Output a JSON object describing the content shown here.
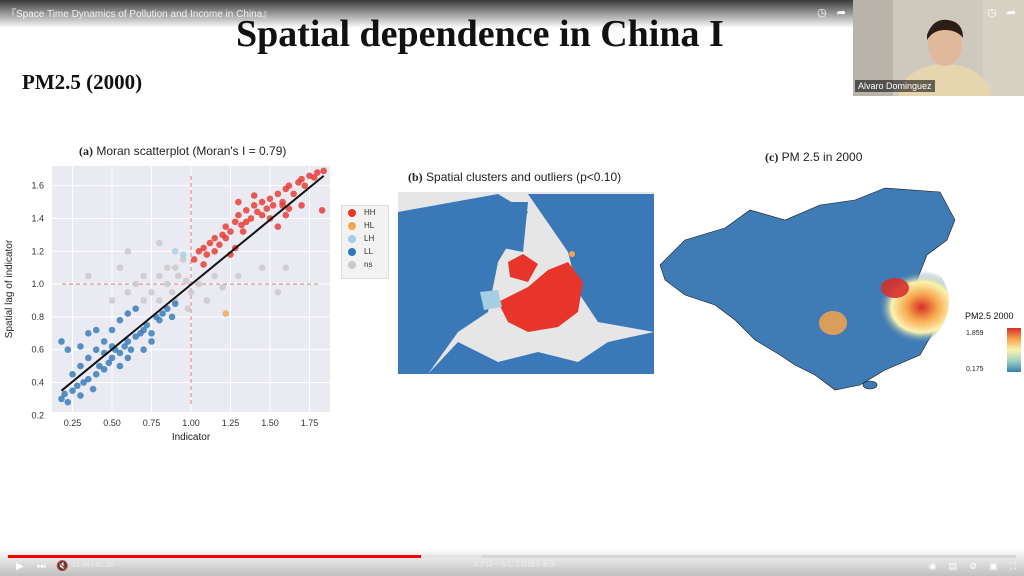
{
  "player": {
    "video_title": "『Space Time Dynamics of Pollution and Income in China』",
    "time": "18:44 / 45:39",
    "scroll_hint": "スクロールして詳細を表示",
    "progress_fraction": 0.41,
    "buffer_fraction": 0.47,
    "presenter_name": "Alvaro Dominguez"
  },
  "slide": {
    "title": "Spatial dependence in China I",
    "subtitle": "PM2.5 (2000)",
    "panel_a": {
      "label": "(a)",
      "title": "Moran scatterplot (Moran's I = 0.79)"
    },
    "panel_b": {
      "label": "(b)",
      "title": "Spatial clusters and outliers (p<0.10)"
    },
    "panel_c": {
      "label": "(c)",
      "title": "PM 2.5 in 2000",
      "colorbar_title": "PM2.5 2000",
      "max": "1.859",
      "min": "0.175"
    }
  },
  "chart_data": {
    "type": "scatter",
    "title": "Moran scatterplot (Moran's I = 0.79)",
    "xlabel": "Indicator",
    "ylabel": "Spatial lag of indicator",
    "xlim": [
      0.12,
      1.88
    ],
    "ylim": [
      0.22,
      1.72
    ],
    "xticks": [
      "0.25",
      "0.50",
      "0.75",
      "1.00",
      "1.25",
      "1.50",
      "1.75"
    ],
    "yticks": [
      "0.2",
      "0.4",
      "0.6",
      "0.8",
      "1.0",
      "1.2",
      "1.4",
      "1.6"
    ],
    "grid": true,
    "legend_position": "right",
    "reference_lines": {
      "x": 1.0,
      "y": 1.0
    },
    "fit_line": {
      "x": [
        0.18,
        1.84
      ],
      "y": [
        0.35,
        1.66
      ]
    },
    "series": [
      {
        "name": "HH",
        "color": "#e8352b",
        "points": [
          [
            1.02,
            1.15
          ],
          [
            1.05,
            1.2
          ],
          [
            1.08,
            1.22
          ],
          [
            1.1,
            1.18
          ],
          [
            1.12,
            1.25
          ],
          [
            1.15,
            1.28
          ],
          [
            1.18,
            1.24
          ],
          [
            1.2,
            1.3
          ],
          [
            1.22,
            1.35
          ],
          [
            1.25,
            1.32
          ],
          [
            1.28,
            1.38
          ],
          [
            1.3,
            1.42
          ],
          [
            1.32,
            1.36
          ],
          [
            1.35,
            1.45
          ],
          [
            1.38,
            1.4
          ],
          [
            1.4,
            1.48
          ],
          [
            1.42,
            1.44
          ],
          [
            1.45,
            1.5
          ],
          [
            1.48,
            1.46
          ],
          [
            1.5,
            1.52
          ],
          [
            1.52,
            1.48
          ],
          [
            1.55,
            1.55
          ],
          [
            1.58,
            1.5
          ],
          [
            1.6,
            1.58
          ],
          [
            1.62,
            1.6
          ],
          [
            1.65,
            1.55
          ],
          [
            1.68,
            1.62
          ],
          [
            1.7,
            1.64
          ],
          [
            1.72,
            1.6
          ],
          [
            1.75,
            1.66
          ],
          [
            1.78,
            1.65
          ],
          [
            1.8,
            1.68
          ],
          [
            1.84,
            1.69
          ],
          [
            1.4,
            1.54
          ],
          [
            1.3,
            1.5
          ],
          [
            1.35,
            1.38
          ],
          [
            1.45,
            1.42
          ],
          [
            1.55,
            1.35
          ],
          [
            1.6,
            1.42
          ],
          [
            1.15,
            1.2
          ],
          [
            1.25,
            1.18
          ],
          [
            1.22,
            1.28
          ],
          [
            1.5,
            1.4
          ],
          [
            1.58,
            1.48
          ],
          [
            1.62,
            1.46
          ],
          [
            1.7,
            1.48
          ],
          [
            1.83,
            1.45
          ],
          [
            1.28,
            1.22
          ],
          [
            1.08,
            1.12
          ],
          [
            1.33,
            1.32
          ]
        ]
      },
      {
        "name": "HL",
        "color": "#f5a54a",
        "points": [
          [
            1.22,
            0.82
          ]
        ]
      },
      {
        "name": "LH",
        "color": "#a6cee3",
        "points": [
          [
            0.95,
            1.18
          ],
          [
            0.9,
            1.2
          ]
        ]
      },
      {
        "name": "LL",
        "color": "#2f77b8",
        "points": [
          [
            0.18,
            0.3
          ],
          [
            0.2,
            0.33
          ],
          [
            0.22,
            0.28
          ],
          [
            0.25,
            0.35
          ],
          [
            0.28,
            0.38
          ],
          [
            0.3,
            0.32
          ],
          [
            0.32,
            0.4
          ],
          [
            0.35,
            0.42
          ],
          [
            0.38,
            0.36
          ],
          [
            0.4,
            0.45
          ],
          [
            0.42,
            0.5
          ],
          [
            0.45,
            0.48
          ],
          [
            0.48,
            0.52
          ],
          [
            0.5,
            0.55
          ],
          [
            0.52,
            0.6
          ],
          [
            0.55,
            0.58
          ],
          [
            0.58,
            0.62
          ],
          [
            0.6,
            0.65
          ],
          [
            0.62,
            0.6
          ],
          [
            0.65,
            0.68
          ],
          [
            0.68,
            0.7
          ],
          [
            0.7,
            0.72
          ],
          [
            0.72,
            0.75
          ],
          [
            0.75,
            0.7
          ],
          [
            0.78,
            0.8
          ],
          [
            0.8,
            0.78
          ],
          [
            0.82,
            0.82
          ],
          [
            0.85,
            0.85
          ],
          [
            0.88,
            0.8
          ],
          [
            0.9,
            0.88
          ],
          [
            0.18,
            0.65
          ],
          [
            0.22,
            0.6
          ],
          [
            0.3,
            0.62
          ],
          [
            0.35,
            0.7
          ],
          [
            0.4,
            0.72
          ],
          [
            0.45,
            0.65
          ],
          [
            0.5,
            0.72
          ],
          [
            0.55,
            0.78
          ],
          [
            0.6,
            0.82
          ],
          [
            0.65,
            0.85
          ],
          [
            0.25,
            0.45
          ],
          [
            0.3,
            0.5
          ],
          [
            0.35,
            0.55
          ],
          [
            0.4,
            0.6
          ],
          [
            0.45,
            0.58
          ],
          [
            0.5,
            0.62
          ],
          [
            0.55,
            0.5
          ],
          [
            0.6,
            0.55
          ],
          [
            0.7,
            0.6
          ],
          [
            0.75,
            0.65
          ]
        ]
      },
      {
        "name": "ns",
        "color": "#c8c8c8",
        "points": [
          [
            0.35,
            1.05
          ],
          [
            0.55,
            1.1
          ],
          [
            0.6,
            1.2
          ],
          [
            0.8,
            1.25
          ],
          [
            0.85,
            1.1
          ],
          [
            0.92,
            1.05
          ],
          [
            0.95,
            1.15
          ],
          [
            1.0,
            0.95
          ],
          [
            0.75,
            0.95
          ],
          [
            0.7,
            0.9
          ],
          [
            0.65,
            1.0
          ],
          [
            0.88,
            0.95
          ],
          [
            0.98,
            0.85
          ],
          [
            1.15,
            1.05
          ],
          [
            1.3,
            1.05
          ],
          [
            1.45,
            1.1
          ],
          [
            1.6,
            1.1
          ],
          [
            1.55,
            0.95
          ],
          [
            1.1,
            0.9
          ],
          [
            0.8,
            1.05
          ],
          [
            0.9,
            1.1
          ],
          [
            0.7,
            1.05
          ],
          [
            1.05,
            1.0
          ],
          [
            0.97,
            1.02
          ],
          [
            0.85,
            1.0
          ],
          [
            0.6,
            0.95
          ],
          [
            0.8,
            0.9
          ],
          [
            0.9,
            0.9
          ],
          [
            1.2,
            0.98
          ],
          [
            0.5,
            0.9
          ]
        ]
      }
    ]
  },
  "colors": {
    "hh": "#e8352b",
    "hl": "#f5a54a",
    "lh": "#a6cee3",
    "ll": "#2f77b8",
    "ns": "#c8c8c8",
    "map_blue": "#3f7bb5",
    "progress": "#ff0000"
  },
  "icons": {
    "clock": "clock-icon",
    "share": "share-icon",
    "play": "play-icon",
    "next": "next-icon",
    "mute": "volume-muted-icon",
    "settings": "gear-icon",
    "subtitles": "subtitles-icon",
    "fullscreen": "fullscreen-icon"
  }
}
